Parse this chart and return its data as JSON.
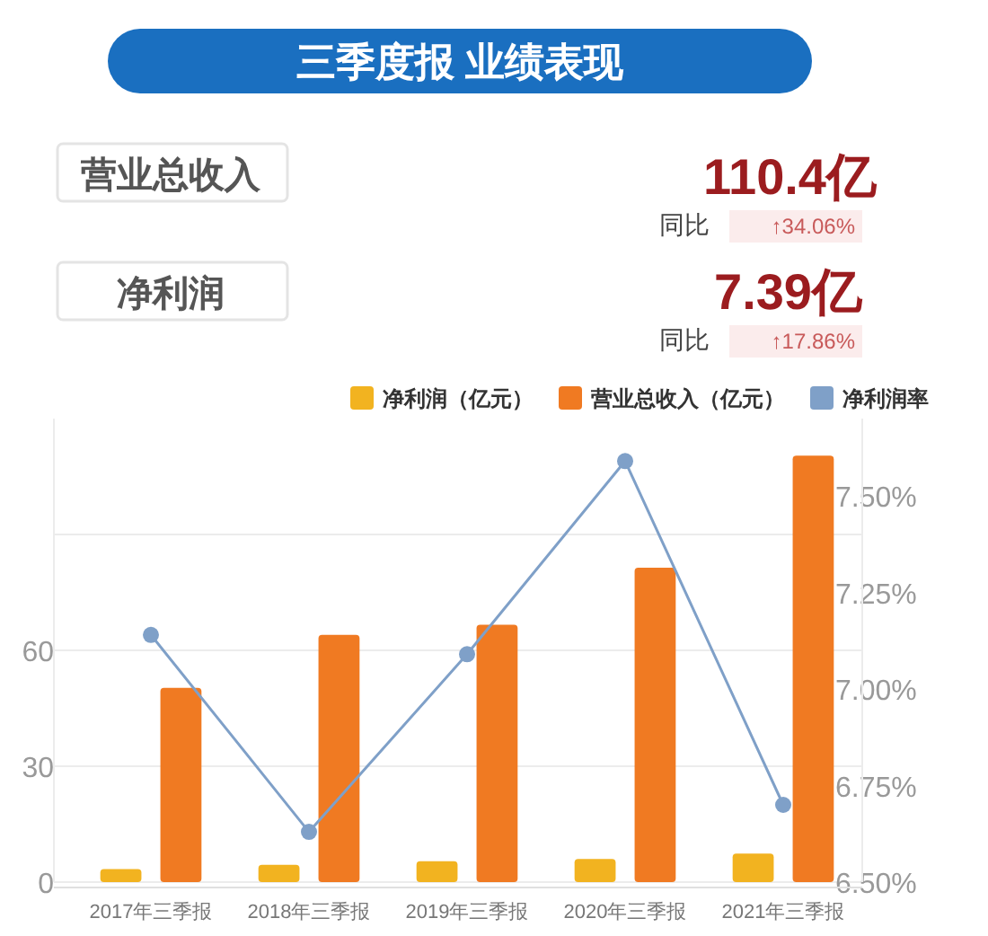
{
  "chart_data": {
    "type": "bar",
    "title": "三季度报 业绩表现",
    "annotations": [
      "营业总收入",
      "110.4亿",
      "同比",
      "↑34.06%",
      "净利润",
      "7.39亿",
      "同比",
      "↑17.86%"
    ],
    "categories": [
      "2017年三季报",
      "2018年三季报",
      "2019年三季报",
      "2020年三季报",
      "2021年三季报"
    ],
    "series": [
      {
        "name": "净利润（亿元）",
        "color": "#f2b320",
        "values": [
          3.4,
          4.5,
          5.4,
          6.0,
          7.4
        ]
      },
      {
        "name": "营业总收入（亿元）",
        "color": "#f07a22",
        "values": [
          50.3,
          64.0,
          66.6,
          81.4,
          110.4
        ]
      },
      {
        "name": "净利润率",
        "type": "line",
        "axis": "y2",
        "color": "#7fa0c8",
        "marker": "circle",
        "values": [
          7.14,
          6.63,
          7.09,
          7.59,
          6.7
        ]
      }
    ],
    "ylim": [
      0,
      120
    ],
    "yticks": [
      0,
      30,
      60,
      {
        "value": 90,
        "label": null
      }
    ],
    "y2lim": [
      6.5,
      7.7
    ],
    "y2ticks": [
      {
        "value": 6.5,
        "label": "6.50%"
      },
      {
        "value": 6.75,
        "label": "6.75%"
      },
      {
        "value": 7.0,
        "label": "7.00%"
      },
      {
        "value": 7.25,
        "label": "7.25%"
      },
      {
        "value": 7.5,
        "label": "7.50%"
      }
    ],
    "grid": "y",
    "legend": "top right"
  }
}
